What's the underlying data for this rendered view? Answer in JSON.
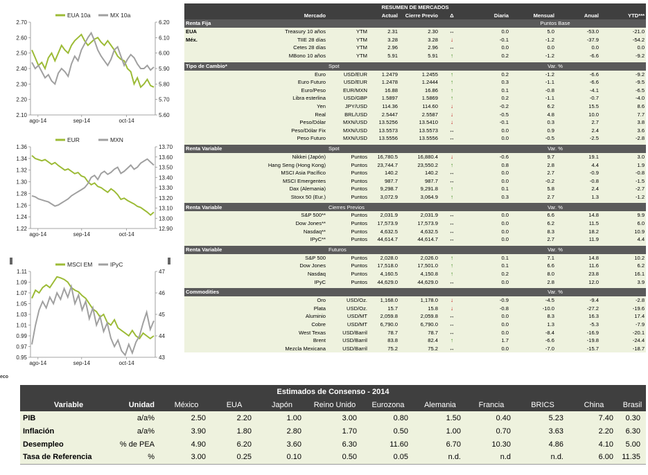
{
  "colors": {
    "green": "#9cbb36",
    "gray": "#a0a0a0",
    "dark": "#3f3f3f",
    "panel": "#eef2de"
  },
  "chart_data": [
    {
      "type": "line",
      "series": [
        {
          "name": "EUA 10a",
          "axis": "left",
          "color": "#9cbb36",
          "values": [
            2.52,
            2.47,
            2.42,
            2.44,
            2.4,
            2.47,
            2.5,
            2.45,
            2.5,
            2.55,
            2.52,
            2.5,
            2.55,
            2.58,
            2.6,
            2.62,
            2.58,
            2.55,
            2.57,
            2.59,
            2.6,
            2.57,
            2.55,
            2.58,
            2.55,
            2.52,
            2.48,
            2.46,
            2.45,
            2.4,
            2.38,
            2.3,
            2.34,
            2.28,
            2.3,
            2.33,
            2.29,
            2.28
          ]
        },
        {
          "name": "MX 10a",
          "axis": "right",
          "color": "#a0a0a0",
          "values": [
            5.94,
            5.9,
            5.92,
            5.88,
            5.84,
            5.86,
            5.82,
            5.8,
            5.87,
            5.9,
            5.88,
            5.85,
            5.93,
            5.98,
            5.95,
            6.02,
            6.06,
            6.1,
            6.13,
            6.08,
            6.02,
            5.98,
            5.95,
            5.92,
            5.96,
            6.02,
            6.04,
            5.98,
            5.92,
            5.96,
            5.99,
            5.97,
            5.93,
            5.9,
            5.9,
            5.92,
            5.89,
            5.91
          ]
        }
      ],
      "x_ticks": [
        "ago-14",
        "sep-14",
        "oct-14"
      ],
      "ylim": [
        2.1,
        2.7
      ],
      "y2lim": [
        5.6,
        6.2
      ],
      "y_ticks": [
        "2.10",
        "2.20",
        "2.30",
        "2.40",
        "2.50",
        "2.60",
        "2.70"
      ],
      "y2_ticks": [
        "5.60",
        "5.70",
        "5.80",
        "5.90",
        "6.00",
        "6.10",
        "6.20"
      ]
    },
    {
      "type": "line",
      "series": [
        {
          "name": "EUR",
          "axis": "left",
          "color": "#9cbb36",
          "values": [
            1.345,
            1.34,
            1.338,
            1.336,
            1.338,
            1.334,
            1.33,
            1.333,
            1.328,
            1.324,
            1.32,
            1.322,
            1.318,
            1.314,
            1.316,
            1.31,
            1.308,
            1.3,
            1.295,
            1.298,
            1.292,
            1.29,
            1.286,
            1.282,
            1.288,
            1.284,
            1.278,
            1.27,
            1.272,
            1.268,
            1.265,
            1.262,
            1.258,
            1.256,
            1.252,
            1.248,
            1.243,
            1.248
          ]
        },
        {
          "name": "MXN",
          "axis": "right",
          "color": "#a0a0a0",
          "values": [
            13.22,
            13.21,
            13.19,
            13.18,
            13.17,
            13.16,
            13.14,
            13.12,
            13.13,
            13.15,
            13.17,
            13.19,
            13.22,
            13.24,
            13.26,
            13.28,
            13.3,
            13.34,
            13.4,
            13.42,
            13.38,
            13.44,
            13.46,
            13.43,
            13.45,
            13.48,
            13.5,
            13.44,
            13.46,
            13.49,
            13.52,
            13.48,
            13.5,
            13.54,
            13.56,
            13.58,
            13.55,
            13.52
          ]
        }
      ],
      "x_ticks": [
        "ago-14",
        "sep-14",
        "oct-14"
      ],
      "ylim": [
        1.22,
        1.36
      ],
      "y2lim": [
        12.9,
        13.7
      ],
      "y_ticks": [
        "1.22",
        "1.24",
        "1.26",
        "1.28",
        "1.30",
        "1.32",
        "1.34",
        "1.36"
      ],
      "y2_ticks": [
        "12.90",
        "13.00",
        "13.10",
        "13.20",
        "13.30",
        "13.40",
        "13.50",
        "13.60",
        "13.70"
      ]
    },
    {
      "type": "line",
      "series": [
        {
          "name": "MSCI EM",
          "axis": "left",
          "color": "#9cbb36",
          "values": [
            1.06,
            1.075,
            1.07,
            1.08,
            1.085,
            1.08,
            1.09,
            1.1,
            1.098,
            1.095,
            1.09,
            1.08,
            1.075,
            1.072,
            1.065,
            1.06,
            1.05,
            1.04,
            1.035,
            1.025,
            1.03,
            1.015,
            1.01,
            1.02,
            1.005,
            1.0,
            0.995,
            0.99,
            1.0,
            0.99,
            0.985,
            0.995,
            0.99,
            0.985,
            0.99
          ]
        },
        {
          "name": "IPyC",
          "axis": "right",
          "color": "#a0a0a0",
          "values": [
            43.6,
            44.5,
            45.2,
            45.6,
            45.3,
            45.8,
            45.5,
            46.0,
            45.7,
            46.2,
            45.8,
            46.3,
            45.5,
            45.9,
            45.2,
            45.6,
            44.8,
            45.3,
            44.5,
            44.9,
            44.2,
            44.6,
            43.9,
            43.5,
            43.8,
            43.3,
            43.1,
            43.6,
            43.2,
            43.7,
            44.0,
            44.6,
            45.1,
            44.3,
            44.7
          ]
        }
      ],
      "x_ticks": [
        "ago-14",
        "sep-14",
        "oct-14"
      ],
      "ylim": [
        0.95,
        1.11
      ],
      "y2lim": [
        43,
        47
      ],
      "y_ticks": [
        "0.95",
        "0.97",
        "0.99",
        "1.01",
        "1.03",
        "1.05",
        "1.07",
        "1.09",
        "1.11"
      ],
      "y2_ticks": [
        "43",
        "44",
        "45",
        "46",
        "47"
      ]
    }
  ],
  "mercados": {
    "title": "RESUMEN DE MERCADOS",
    "head": {
      "mercado": "Mercado",
      "actual": "Actual",
      "previo": "Cierre Previo",
      "delta": "Δ",
      "diaria": "Diaria",
      "mensual": "Mensual",
      "anual": "Anual",
      "ytd": "YTD***"
    },
    "sections": [
      {
        "title": "Renta Fija",
        "sub": "",
        "unit": "Puntos Base",
        "rows": [
          {
            "pre": "EUA",
            "name": "Treasury 10 años",
            "unit": "YTM",
            "actual": "2.31",
            "prev": "2.30",
            "dir": "eq",
            "d": "0.0",
            "m": "5.0",
            "a": "-53.0",
            "y": "-21.0"
          },
          {
            "pre": "Méx.",
            "name": "TIIE 28 días",
            "unit": "YTM",
            "actual": "3.28",
            "prev": "3.28",
            "dir": "dn",
            "d": "-0.1",
            "m": "-1.2",
            "a": "-37.9",
            "y": "-54.2"
          },
          {
            "pre": "",
            "name": "Cetes 28 días",
            "unit": "YTM",
            "actual": "2.96",
            "prev": "2.96",
            "dir": "eq",
            "d": "0.0",
            "m": "0.0",
            "a": "0.0",
            "y": "0.0"
          },
          {
            "pre": "",
            "name": "MBono 10 años",
            "unit": "YTM",
            "actual": "5.91",
            "prev": "5.91",
            "dir": "up",
            "d": "0.2",
            "m": "-1.2",
            "a": "-6.6",
            "y": "-9.2"
          }
        ]
      },
      {
        "title": "Tipo de Cambio*",
        "sub": "Spot",
        "unit": "Var. %",
        "rows": [
          {
            "pre": "",
            "name": "Euro",
            "unit": "USD/EUR",
            "actual": "1.2479",
            "prev": "1.2455",
            "dir": "up",
            "d": "0.2",
            "m": "-1.2",
            "a": "-6.6",
            "y": "-9.2"
          },
          {
            "pre": "",
            "name": "Euro Futuro",
            "unit": "USD/EUR",
            "actual": "1.2478",
            "prev": "1.2444",
            "dir": "up",
            "d": "0.3",
            "m": "-1.1",
            "a": "-6.6",
            "y": "-9.5"
          },
          {
            "pre": "",
            "name": "Euro/Peso",
            "unit": "EUR/MXN",
            "actual": "16.88",
            "prev": "16.86",
            "dir": "up",
            "d": "0.1",
            "m": "-0.8",
            "a": "-4.1",
            "y": "-6.5"
          },
          {
            "pre": "",
            "name": "Libra esterlina",
            "unit": "USD/GBP",
            "actual": "1.5897",
            "prev": "1.5869",
            "dir": "up",
            "d": "0.2",
            "m": "-1.1",
            "a": "-0.7",
            "y": "-4.0"
          },
          {
            "pre": "",
            "name": "Yen",
            "unit": "JPY/USD",
            "actual": "114.36",
            "prev": "114.60",
            "dir": "dn",
            "d": "-0.2",
            "m": "6.2",
            "a": "15.5",
            "y": "8.6"
          },
          {
            "pre": "",
            "name": "Real",
            "unit": "BRL/USD",
            "actual": "2.5447",
            "prev": "2.5587",
            "dir": "dn",
            "d": "-0.5",
            "m": "4.8",
            "a": "10.0",
            "y": "7.7"
          },
          {
            "pre": "",
            "name": "Peso/Dólar",
            "unit": "MXN/USD",
            "actual": "13.5256",
            "prev": "13.5410",
            "dir": "dn",
            "d": "-0.1",
            "m": "0.3",
            "a": "2.7",
            "y": "3.8"
          },
          {
            "pre": "",
            "name": "Peso/Dólar Fix",
            "unit": "MXN/USD",
            "actual": "13.5573",
            "prev": "13.5573",
            "dir": "eq",
            "d": "0.0",
            "m": "0.9",
            "a": "2.4",
            "y": "3.6"
          },
          {
            "pre": "",
            "name": "Peso Futuro",
            "unit": "MXN/USD",
            "actual": "13.5556",
            "prev": "13.5556",
            "dir": "eq",
            "d": "0.0",
            "m": "-0.5",
            "a": "-2.5",
            "y": "-2.8"
          }
        ]
      },
      {
        "title": "Renta Variable",
        "sub": "Spot",
        "unit": "Var. %",
        "rows": [
          {
            "pre": "",
            "name": "Nikkei (Japón)",
            "unit": "Puntos",
            "actual": "16,780.5",
            "prev": "16,880.4",
            "dir": "dn",
            "d": "-0.6",
            "m": "9.7",
            "a": "19.1",
            "y": "3.0"
          },
          {
            "pre": "",
            "name": "Hang Seng (Hong Kong)",
            "unit": "Puntos",
            "actual": "23,744.7",
            "prev": "23,550.2",
            "dir": "up",
            "d": "0.8",
            "m": "2.8",
            "a": "4.4",
            "y": "1.9"
          },
          {
            "pre": "",
            "name": "MSCI Asia Pacífico",
            "unit": "Puntos",
            "actual": "140.2",
            "prev": "140.2",
            "dir": "eq",
            "d": "0.0",
            "m": "2.7",
            "a": "-0.9",
            "y": "-0.8"
          },
          {
            "pre": "",
            "name": "MSCI Emergentes",
            "unit": "Puntos",
            "actual": "987.7",
            "prev": "987.7",
            "dir": "eq",
            "d": "0.0",
            "m": "-0.2",
            "a": "-0.8",
            "y": "-1.5"
          },
          {
            "pre": "",
            "name": "Dax (Alemania)",
            "unit": "Puntos",
            "actual": "9,298.7",
            "prev": "9,291.8",
            "dir": "up",
            "d": "0.1",
            "m": "5.8",
            "a": "2.4",
            "y": "-2.7"
          },
          {
            "pre": "",
            "name": "Stoxx 50 (Eur.)",
            "unit": "Puntos",
            "actual": "3,072.9",
            "prev": "3,064.9",
            "dir": "up",
            "d": "0.3",
            "m": "2.7",
            "a": "1.3",
            "y": "-1.2"
          }
        ]
      },
      {
        "title": "Renta Variable",
        "sub": "Cierres Previos",
        "unit": "Var. %",
        "rows": [
          {
            "pre": "",
            "name": "S&P 500**",
            "unit": "Puntos",
            "actual": "2,031.9",
            "prev": "2,031.9",
            "dir": "eq",
            "d": "0.0",
            "m": "6.6",
            "a": "14.8",
            "y": "9.9"
          },
          {
            "pre": "",
            "name": "Dow Jones**",
            "unit": "Puntos",
            "actual": "17,573.9",
            "prev": "17,573.9",
            "dir": "eq",
            "d": "0.0",
            "m": "6.2",
            "a": "11.5",
            "y": "6.0"
          },
          {
            "pre": "",
            "name": "Nasdaq**",
            "unit": "Puntos",
            "actual": "4,632.5",
            "prev": "4,632.5",
            "dir": "eq",
            "d": "0.0",
            "m": "8.3",
            "a": "18.2",
            "y": "10.9"
          },
          {
            "pre": "",
            "name": "IPyC**",
            "unit": "Puntos",
            "actual": "44,614.7",
            "prev": "44,614.7",
            "dir": "eq",
            "d": "0.0",
            "m": "2.7",
            "a": "11.9",
            "y": "4.4"
          }
        ]
      },
      {
        "title": "Renta Variable",
        "sub": "Futuros",
        "unit": "Var. %",
        "rows": [
          {
            "pre": "",
            "name": "S&P 500",
            "unit": "Puntos",
            "actual": "2,028.0",
            "prev": "2,026.0",
            "dir": "up",
            "d": "0.1",
            "m": "7.1",
            "a": "14.8",
            "y": "10.2"
          },
          {
            "pre": "",
            "name": "Dow Jones",
            "unit": "Puntos",
            "actual": "17,518.0",
            "prev": "17,501.0",
            "dir": "up",
            "d": "0.1",
            "m": "6.6",
            "a": "11.6",
            "y": "6.2"
          },
          {
            "pre": "",
            "name": "Nasdaq",
            "unit": "Puntos",
            "actual": "4,160.5",
            "prev": "4,150.8",
            "dir": "up",
            "d": "0.2",
            "m": "8.0",
            "a": "23.8",
            "y": "16.1"
          },
          {
            "pre": "",
            "name": "IPyC",
            "unit": "Puntos",
            "actual": "44,629.0",
            "prev": "44,629.0",
            "dir": "eq",
            "d": "0.0",
            "m": "2.8",
            "a": "12.0",
            "y": "3.9"
          }
        ]
      },
      {
        "title": "Commodities",
        "sub": "",
        "unit": "Var. %",
        "rows": [
          {
            "pre": "",
            "name": "Oro",
            "unit": "USD/Oz.",
            "actual": "1,168.0",
            "prev": "1,178.0",
            "dir": "dn",
            "d": "-0.9",
            "m": "-4.5",
            "a": "-9.4",
            "y": "-2.8"
          },
          {
            "pre": "",
            "name": "Plata",
            "unit": "USD/Oz.",
            "actual": "15.7",
            "prev": "15.8",
            "dir": "dn",
            "d": "-0.8",
            "m": "-10.0",
            "a": "-27.2",
            "y": "-19.6"
          },
          {
            "pre": "",
            "name": "Aluminio",
            "unit": "USD/MT",
            "actual": "2,059.8",
            "prev": "2,059.8",
            "dir": "eq",
            "d": "0.0",
            "m": "8.3",
            "a": "16.3",
            "y": "17.4"
          },
          {
            "pre": "",
            "name": "Cobre",
            "unit": "USD/MT",
            "actual": "6,790.0",
            "prev": "6,790.0",
            "dir": "eq",
            "d": "0.0",
            "m": "1.3",
            "a": "-5.3",
            "y": "-7.9"
          },
          {
            "pre": "",
            "name": "West Texas",
            "unit": "USD/Barril",
            "actual": "78.7",
            "prev": "78.7",
            "dir": "eq",
            "d": "0.0",
            "m": "-8.4",
            "a": "-16.9",
            "y": "-20.1"
          },
          {
            "pre": "",
            "name": "Brent",
            "unit": "USD/Barril",
            "actual": "83.8",
            "prev": "82.4",
            "dir": "up",
            "d": "1.7",
            "m": "-6.6",
            "a": "-19.8",
            "y": "-24.4"
          },
          {
            "pre": "",
            "name": "Mezcla Mexicana",
            "unit": "USD/Barril",
            "actual": "75.2",
            "prev": "75.2",
            "dir": "eq",
            "d": "0.0",
            "m": "-7.0",
            "a": "-15.7",
            "y": "-18.7"
          }
        ]
      }
    ]
  },
  "eco_label": "eco",
  "consenso": {
    "title": "Estimados de Consenso - 2014",
    "headers": [
      "Variable",
      "Unidad",
      "México",
      "EUA",
      "Japón",
      "Reino Unido",
      "Eurozona",
      "Alemania",
      "Francia",
      "BRICS",
      "China",
      "Brasil"
    ],
    "rows": [
      [
        "PIB",
        "a/a%",
        "2.50",
        "2.20",
        "1.00",
        "3.00",
        "0.80",
        "1.50",
        "0.40",
        "5.23",
        "7.40",
        "0.30"
      ],
      [
        "Inflación",
        "a/a%",
        "3.90",
        "1.80",
        "2.80",
        "1.70",
        "0.50",
        "1.00",
        "0.70",
        "3.63",
        "2.20",
        "6.30"
      ],
      [
        "Desempleo",
        "% de PEA",
        "4.90",
        "6.20",
        "3.60",
        "6.30",
        "11.60",
        "6.70",
        "10.30",
        "4.86",
        "4.10",
        "5.00"
      ],
      [
        "Tasa de Referencia",
        "%",
        "3.00",
        "0.25",
        "0.10",
        "0.50",
        "0.05",
        "n.d.",
        "n.d",
        "n.d.",
        "6.00",
        "11.35"
      ]
    ]
  }
}
